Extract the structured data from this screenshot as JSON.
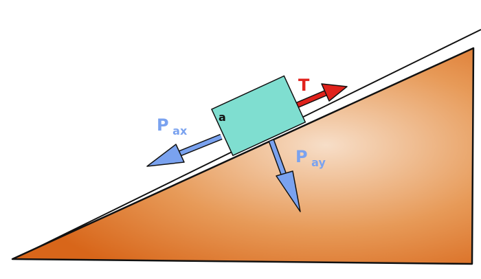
{
  "diagram": {
    "block_label": "a",
    "forces": {
      "tension": {
        "label": "T",
        "color": "#e0221c"
      },
      "parallel": {
        "label_main": "P",
        "label_sub": "ax",
        "color": "#7aa2ef"
      },
      "perpendicular": {
        "label_main": "P",
        "label_sub": "ay",
        "color": "#7aa2ef"
      }
    },
    "colors": {
      "incline_light": "#f6dcc4",
      "incline_dark": "#d96a1a",
      "block": "#7fded0",
      "outline": "#111111"
    }
  }
}
